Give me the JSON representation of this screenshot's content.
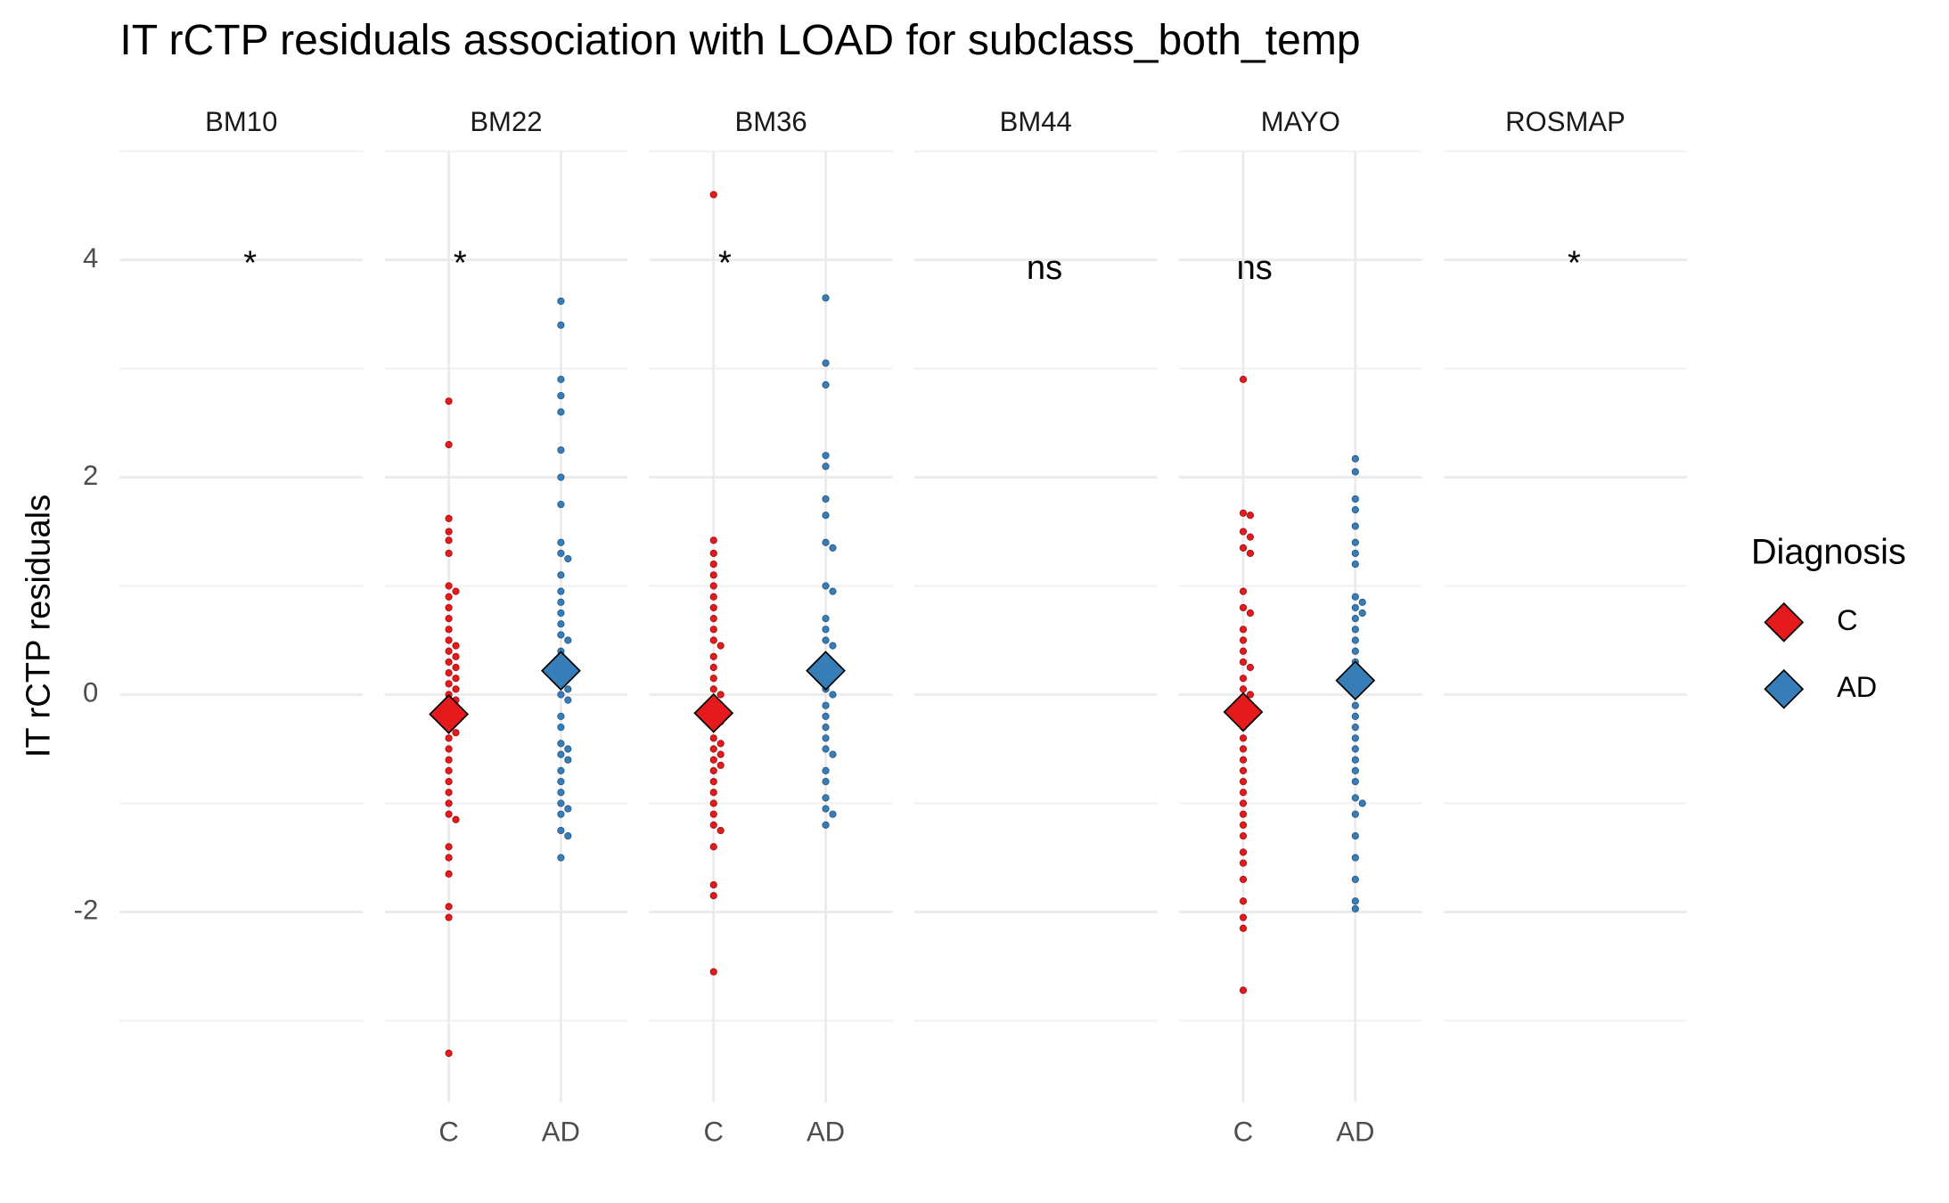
{
  "chart_data": {
    "type": "beeswarm",
    "title": "IT rCTP residuals association with LOAD for subclass_both_temp",
    "y_label": "IT rCTP residuals",
    "legend_title": "Diagnosis",
    "categories": [
      "C",
      "AD"
    ],
    "series": [
      {
        "name": "C",
        "color": "#e41a1c"
      },
      {
        "name": "AD",
        "color": "#377eb8"
      }
    ],
    "ylim": [
      -3.75,
      5.0
    ],
    "yticks": [
      -2,
      0,
      2,
      4
    ],
    "grid": true,
    "facets": [
      {
        "name": "BM10",
        "annotation": "*",
        "groups": []
      },
      {
        "name": "BM22",
        "annotation": "*",
        "groups": [
          {
            "values": [
              2.7,
              2.3,
              1.62,
              1.5,
              1.42,
              1.3,
              1.0,
              0.95,
              0.9,
              0.8,
              0.7,
              0.6,
              0.5,
              0.45,
              0.4,
              0.35,
              0.3,
              0.25,
              0.2,
              0.15,
              0.1,
              0.05,
              0.0,
              -0.05,
              -0.1,
              -0.15,
              -0.2,
              -0.25,
              -0.3,
              -0.35,
              -0.4,
              -0.5,
              -0.6,
              -0.7,
              -0.8,
              -0.9,
              -1.0,
              -1.1,
              -1.15,
              -1.4,
              -1.5,
              -1.65,
              -1.95,
              -2.05,
              -3.3
            ],
            "mean": -0.18
          },
          {
            "values": [
              3.62,
              3.4,
              2.9,
              2.75,
              2.6,
              2.25,
              2.0,
              1.75,
              1.4,
              1.3,
              1.25,
              1.1,
              0.95,
              0.85,
              0.75,
              0.65,
              0.55,
              0.5,
              0.4,
              0.3,
              0.2,
              0.1,
              0.05,
              0.0,
              -0.05,
              -0.2,
              -0.3,
              -0.45,
              -0.5,
              -0.55,
              -0.6,
              -0.7,
              -0.8,
              -0.9,
              -1.0,
              -1.05,
              -1.1,
              -1.25,
              -1.3,
              -1.5
            ],
            "mean": 0.22
          }
        ]
      },
      {
        "name": "BM36",
        "annotation": "*",
        "groups": [
          {
            "values": [
              4.6,
              1.42,
              1.3,
              1.2,
              1.1,
              1.0,
              0.9,
              0.8,
              0.7,
              0.6,
              0.5,
              0.45,
              0.35,
              0.25,
              0.15,
              0.05,
              0.0,
              -0.05,
              -0.1,
              -0.2,
              -0.25,
              -0.3,
              -0.4,
              -0.45,
              -0.5,
              -0.55,
              -0.6,
              -0.65,
              -0.7,
              -0.8,
              -0.9,
              -1.0,
              -1.1,
              -1.2,
              -1.25,
              -1.4,
              -1.75,
              -1.85,
              -2.55
            ],
            "mean": -0.17
          },
          {
            "values": [
              3.65,
              3.05,
              2.85,
              2.2,
              2.1,
              1.8,
              1.65,
              1.4,
              1.35,
              1.0,
              0.95,
              0.7,
              0.6,
              0.5,
              0.45,
              0.35,
              0.25,
              0.15,
              0.05,
              0.0,
              -0.1,
              -0.2,
              -0.3,
              -0.4,
              -0.5,
              -0.55,
              -0.7,
              -0.8,
              -0.95,
              -1.05,
              -1.1,
              -1.2
            ],
            "mean": 0.22
          }
        ]
      },
      {
        "name": "BM44",
        "annotation": "ns",
        "groups": []
      },
      {
        "name": "MAYO",
        "annotation": "ns",
        "groups": [
          {
            "values": [
              2.9,
              1.67,
              1.65,
              1.5,
              1.45,
              1.35,
              1.3,
              0.95,
              0.8,
              0.75,
              0.6,
              0.5,
              0.4,
              0.3,
              0.25,
              0.15,
              0.05,
              0.0,
              -0.05,
              -0.1,
              -0.2,
              -0.3,
              -0.4,
              -0.5,
              -0.6,
              -0.7,
              -0.8,
              -0.9,
              -1.0,
              -1.1,
              -1.2,
              -1.3,
              -1.45,
              -1.55,
              -1.7,
              -1.9,
              -2.05,
              -2.15,
              -2.72
            ],
            "mean": -0.16
          },
          {
            "values": [
              2.17,
              2.05,
              1.8,
              1.7,
              1.55,
              1.4,
              1.3,
              1.2,
              0.9,
              0.85,
              0.8,
              0.75,
              0.7,
              0.6,
              0.5,
              0.4,
              0.3,
              0.2,
              0.1,
              0.0,
              -0.1,
              -0.2,
              -0.3,
              -0.4,
              -0.5,
              -0.6,
              -0.7,
              -0.8,
              -0.95,
              -1.0,
              -1.1,
              -1.3,
              -1.5,
              -1.7,
              -1.9,
              -1.97
            ],
            "mean": 0.13
          }
        ]
      },
      {
        "name": "ROSMAP",
        "annotation": "*",
        "groups": []
      }
    ]
  }
}
